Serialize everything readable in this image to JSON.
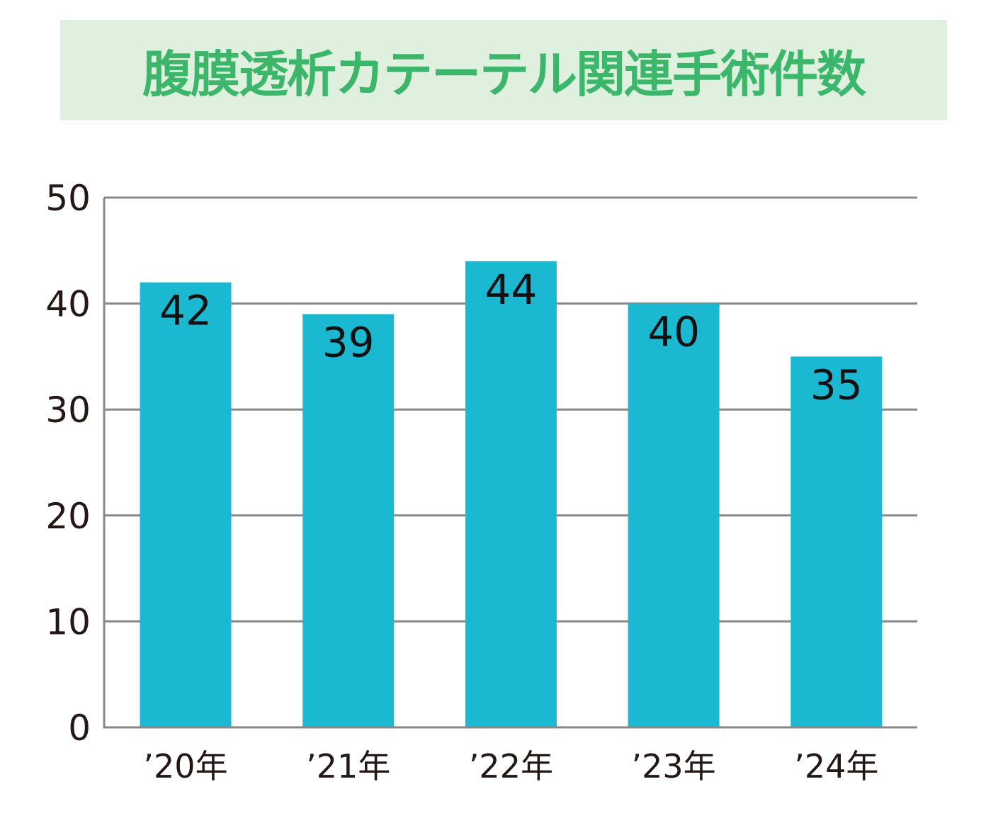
{
  "chart_data": {
    "type": "bar",
    "title": "腹膜透析カテーテル関連手術件数",
    "categories": [
      "’20年",
      "’21年",
      "’22年",
      "’23年",
      "’24年"
    ],
    "values": [
      42,
      39,
      44,
      40,
      35
    ],
    "xlabel": "",
    "ylabel": "",
    "ylim": [
      0,
      50
    ],
    "yticks": [
      0,
      10,
      20,
      30,
      40,
      50
    ],
    "grid": true,
    "bar_color": "#1bb8d2",
    "title_color": "#3cb66a",
    "title_bg": "#dff0df"
  }
}
